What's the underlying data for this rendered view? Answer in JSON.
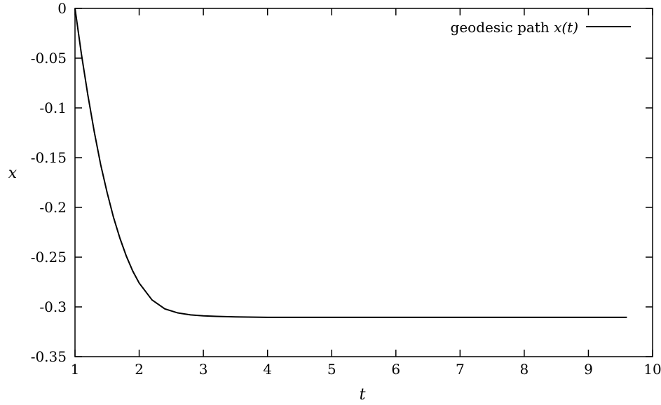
{
  "chart_data": {
    "type": "line",
    "title": "",
    "xlabel": "t",
    "ylabel": "x",
    "xlim": [
      1,
      10
    ],
    "ylim": [
      -0.35,
      0
    ],
    "xticks": [
      1,
      2,
      3,
      4,
      5,
      6,
      7,
      8,
      9,
      10
    ],
    "yticks": [
      0,
      -0.05,
      -0.1,
      -0.15,
      -0.2,
      -0.25,
      -0.3,
      -0.35
    ],
    "xtick_labels": [
      "1",
      "2",
      "3",
      "4",
      "5",
      "6",
      "7",
      "8",
      "9",
      "10"
    ],
    "ytick_labels": [
      "0",
      "-0.05",
      "-0.1",
      "-0.15",
      "-0.2",
      "-0.25",
      "-0.3",
      "-0.35"
    ],
    "grid": false,
    "legend_position": "top-right",
    "legend": {
      "label_text": "geodesic path ",
      "label_math": "x(t)"
    },
    "series": [
      {
        "name": "geodesic path x(t)",
        "color": "#000000",
        "x": [
          1.0,
          1.1,
          1.2,
          1.3,
          1.4,
          1.5,
          1.6,
          1.7,
          1.8,
          1.9,
          2.0,
          2.2,
          2.4,
          2.6,
          2.8,
          3.0,
          3.2,
          3.5,
          4.0,
          5.0,
          6.0,
          7.0,
          8.0,
          9.0,
          9.6
        ],
        "y": [
          0.0,
          -0.046,
          -0.087,
          -0.124,
          -0.157,
          -0.185,
          -0.21,
          -0.231,
          -0.249,
          -0.264,
          -0.276,
          -0.293,
          -0.302,
          -0.306,
          -0.308,
          -0.309,
          -0.3095,
          -0.31,
          -0.3105,
          -0.3105,
          -0.3105,
          -0.3105,
          -0.3105,
          -0.3105,
          -0.3105
        ]
      }
    ]
  }
}
